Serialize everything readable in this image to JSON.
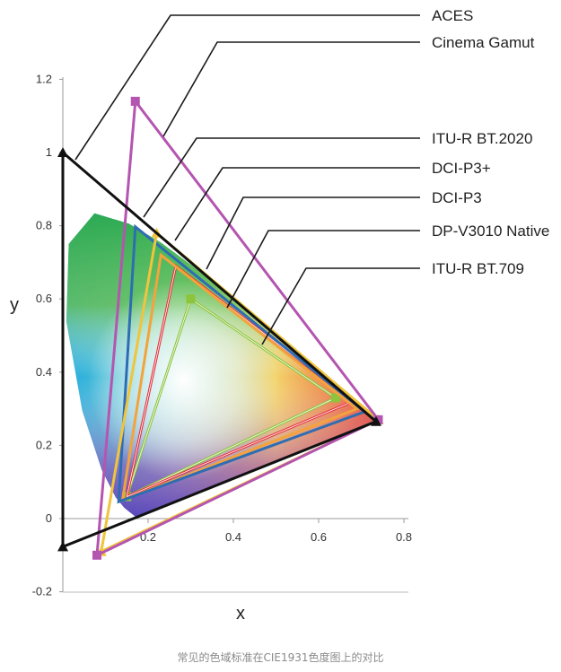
{
  "caption": "常见的色域标准在CIE1931色度图上的对比",
  "chart_data": {
    "type": "scatter",
    "xlabel": "x",
    "ylabel": "y",
    "xlim": [
      0,
      0.8
    ],
    "ylim": [
      -0.2,
      1.2
    ],
    "x_ticks": [
      "0.2",
      "0.4",
      "0.6",
      "0.8"
    ],
    "y_ticks": [
      "-0.2",
      "0",
      "0.2",
      "0.4",
      "0.6",
      "0.8",
      "1",
      "1.2"
    ],
    "spectral_locus": [
      [
        0.1741,
        0.005
      ],
      [
        0.1733,
        0.0048
      ],
      [
        0.1726,
        0.0048
      ],
      [
        0.1714,
        0.0051
      ],
      [
        0.1689,
        0.0069
      ],
      [
        0.1644,
        0.0109
      ],
      [
        0.1566,
        0.0177
      ],
      [
        0.144,
        0.0297
      ],
      [
        0.1241,
        0.0578
      ],
      [
        0.0913,
        0.1327
      ],
      [
        0.0454,
        0.295
      ],
      [
        0.0082,
        0.5384
      ],
      [
        0.0139,
        0.7502
      ],
      [
        0.0743,
        0.8338
      ],
      [
        0.1547,
        0.8059
      ],
      [
        0.2296,
        0.7543
      ],
      [
        0.3016,
        0.6923
      ],
      [
        0.3731,
        0.6245
      ],
      [
        0.4441,
        0.5547
      ],
      [
        0.5125,
        0.4866
      ],
      [
        0.5752,
        0.4242
      ],
      [
        0.627,
        0.3725
      ],
      [
        0.6658,
        0.334
      ],
      [
        0.6915,
        0.3083
      ],
      [
        0.7079,
        0.292
      ],
      [
        0.719,
        0.2809
      ],
      [
        0.7347,
        0.2653
      ]
    ],
    "series": [
      {
        "name": "ACES",
        "color": "#111111",
        "marker": "triangle",
        "points": [
          [
            0.7347,
            0.2653
          ],
          [
            0.0,
            1.0
          ],
          [
            0.0001,
            -0.077
          ]
        ]
      },
      {
        "name": "Cinema Gamut",
        "color": "#b455b0",
        "marker": "square",
        "points": [
          [
            0.74,
            0.27
          ],
          [
            0.17,
            1.14
          ],
          [
            0.08,
            -0.1
          ]
        ]
      },
      {
        "name": "ITU-R BT.2020",
        "color": "#2f6db3",
        "marker": "none",
        "points": [
          [
            0.708,
            0.292
          ],
          [
            0.17,
            0.797
          ],
          [
            0.131,
            0.046
          ]
        ]
      },
      {
        "name": "DCI-P3+",
        "color": "#f0c43c",
        "marker": "triangle",
        "points": [
          [
            0.74,
            0.27
          ],
          [
            0.22,
            0.78
          ],
          [
            0.09,
            -0.09
          ]
        ]
      },
      {
        "name": "DCI-P3",
        "color": "#e5323c",
        "marker": "none",
        "points": [
          [
            0.68,
            0.32
          ],
          [
            0.265,
            0.69
          ],
          [
            0.15,
            0.06
          ]
        ]
      },
      {
        "name": "DP-V3010 Native",
        "color": "#f3a33c",
        "marker": "none",
        "points": [
          [
            0.69,
            0.3
          ],
          [
            0.23,
            0.72
          ],
          [
            0.14,
            0.05
          ]
        ]
      },
      {
        "name": "ITU-R BT.709",
        "color": "#8cc43c",
        "marker": "square",
        "points": [
          [
            0.64,
            0.33
          ],
          [
            0.3,
            0.6
          ],
          [
            0.15,
            0.06
          ]
        ]
      }
    ]
  }
}
